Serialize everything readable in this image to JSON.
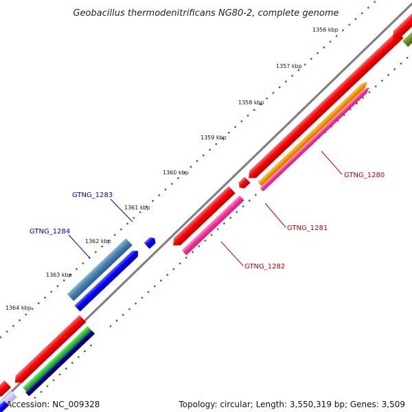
{
  "title": "Geobacillus thermodenitrificans NG80-2, complete genome",
  "footer": {
    "accession": "Accession: NC_009328",
    "summary": "Topology: circular; Length: 3,550,319 bp; Genes: 3,509"
  },
  "ticks": [
    "1356 kbp",
    "1357 kbp",
    "1358 kbp",
    "1359 kbp",
    "1360 kbp",
    "1361 kbp",
    "1362 kbp",
    "1363 kbp",
    "1364 kbp"
  ],
  "gene_labels": {
    "gtng_1280": "GTNG_1280",
    "gtng_1281": "GTNG_1281",
    "gtng_1282": "GTNG_1282",
    "gtng_1283": "GTNG_1283",
    "gtng_1284": "GTNG_1284"
  },
  "colors": {
    "backbone": "#808080",
    "tick_dots": "#1a7a1a",
    "cds_red": "#ff0000",
    "trna_magenta": "#ff3399",
    "orange": "#ff9900",
    "blue": "#0000ff",
    "steelblue": "#4682b4",
    "navy": "#000080",
    "green": "#33cc33",
    "olive": "#6b8e23",
    "label_red": "#cc0000",
    "label_blue": "#0000cc"
  }
}
